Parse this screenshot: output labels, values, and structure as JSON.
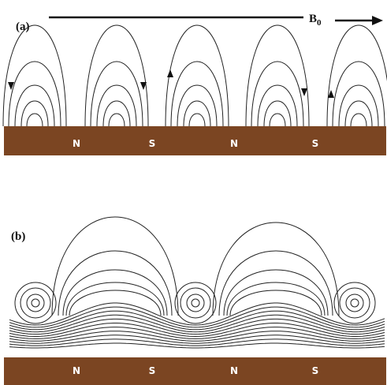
{
  "panel_a": {
    "label": "(a)",
    "field_label": {
      "main": "B",
      "sub": "0"
    },
    "poles": [
      "N",
      "S",
      "N",
      "S"
    ]
  },
  "panel_b": {
    "label": "(b)",
    "poles": [
      "N",
      "S",
      "N",
      "S"
    ]
  }
}
